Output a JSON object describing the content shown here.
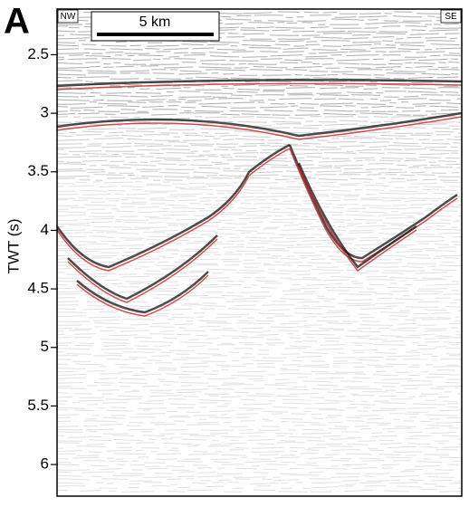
{
  "chart_data": {
    "type": "seismic-section",
    "panel_label": "A",
    "ylabel": "TWT (s)",
    "ylim": [
      2.11,
      6.27
    ],
    "yticks": [
      2.5,
      3,
      3.5,
      4,
      4.5,
      5,
      5.5,
      6
    ],
    "left_label": "NW",
    "right_label": "SE",
    "scale_label": "5 km"
  }
}
